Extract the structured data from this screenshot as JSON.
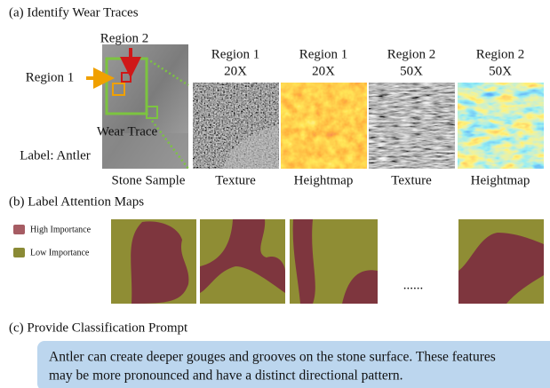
{
  "figure": {
    "panel_a": {
      "title": "(a) Identify Wear Traces",
      "region_2": "Region 2",
      "region_1": "Region 1",
      "wear_trace": "Wear Trace",
      "label": "Label: Antler",
      "stone_caption": "Stone Sample",
      "views": [
        {
          "region": "Region 1",
          "zoom": "20X",
          "caption": "Texture"
        },
        {
          "region": "Region 1",
          "zoom": "20X",
          "caption": "Heightmap"
        },
        {
          "region": "Region 2",
          "zoom": "50X",
          "caption": "Texture"
        },
        {
          "region": "Region 2",
          "zoom": "50X",
          "caption": "Heightmap"
        }
      ]
    },
    "panel_b": {
      "title": "(b) Label Attention Maps",
      "legend": [
        "High Importance",
        "Low Importance"
      ],
      "ellipsis": "......"
    },
    "panel_c": {
      "title": "(c) Provide Classification Prompt",
      "prompt_lines": [
        "Antler can create deeper gouges and grooves on the stone surface. These features",
        "may be more pronounced and have a distinct directional pattern."
      ]
    }
  }
}
